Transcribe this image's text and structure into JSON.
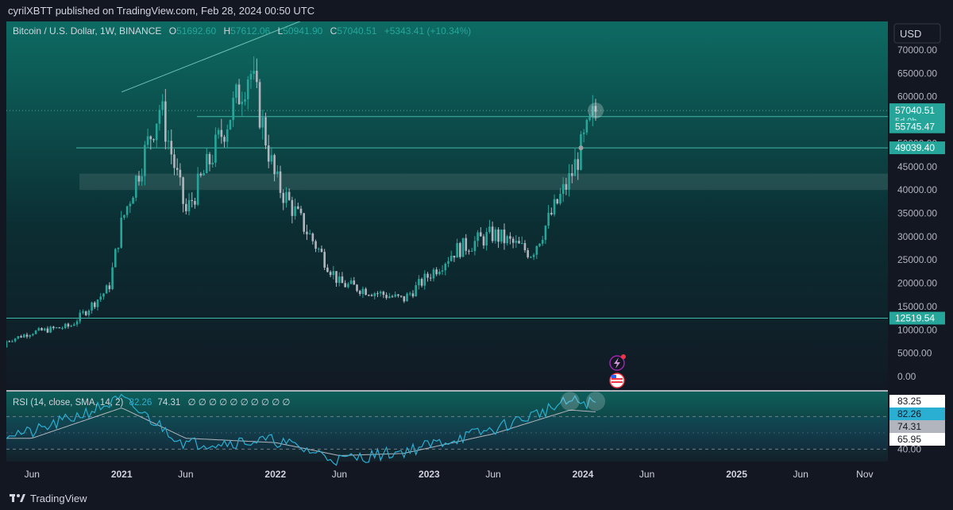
{
  "header": {
    "published_line": "cyrilXBTT published on TradingView.com, Feb 28, 2024 00:50 UTC"
  },
  "legend": {
    "symbol": "Bitcoin / U.S. Dollar, 1W, BINANCE",
    "o_label": "O",
    "o_value": "51692.60",
    "h_label": "H",
    "h_value": "57612.06",
    "l_label": "L",
    "l_value": "50941.90",
    "c_label": "C",
    "c_value": "57040.51",
    "change": "+5343.41 (+10.34%)"
  },
  "currency_button": "USD",
  "price_axis": {
    "ticks": [
      "70000.00",
      "65000.00",
      "60000.00",
      "55000.00",
      "50000.00",
      "45000.00",
      "40000.00",
      "35000.00",
      "30000.00",
      "25000.00",
      "20000.00",
      "15000.00",
      "10000.00",
      "5000.00",
      "0.00"
    ],
    "badges": [
      {
        "value": 57040.51,
        "label": "57040.51",
        "sub": "5d 0h",
        "color": "#26a69a"
      },
      {
        "value": 55745.47,
        "label": "55745.47",
        "color": "#26a69a"
      },
      {
        "value": 49039.4,
        "label": "49039.40",
        "color": "#26a69a"
      },
      {
        "value": 12519.54,
        "label": "12519.54",
        "color": "#26a69a"
      }
    ]
  },
  "rsi": {
    "legend": "RSI (14, close, SMA, 14, 2)",
    "rsi_value": "82.26",
    "sma_value": "74.31",
    "placeholders": "∅ ∅ ∅ ∅ ∅ ∅ ∅ ∅ ∅ ∅",
    "ticks": [
      "40.00"
    ],
    "badges": [
      {
        "value": 83.25,
        "label": "83.25"
      },
      {
        "value": 82.26,
        "label": "82.26"
      },
      {
        "value": 74.31,
        "label": "74.31"
      },
      {
        "value": 65.95,
        "label": "65.95"
      }
    ]
  },
  "time_axis": {
    "labels": [
      {
        "text": "Jun",
        "bold": false
      },
      {
        "text": "2021",
        "bold": true
      },
      {
        "text": "Jun",
        "bold": false
      },
      {
        "text": "2022",
        "bold": true
      },
      {
        "text": "Jun",
        "bold": false
      },
      {
        "text": "2023",
        "bold": true
      },
      {
        "text": "Jun",
        "bold": false
      },
      {
        "text": "2024",
        "bold": true
      },
      {
        "text": "Jun",
        "bold": false
      },
      {
        "text": "2025",
        "bold": true
      },
      {
        "text": "Jun",
        "bold": false
      },
      {
        "text": "Nov",
        "bold": false
      }
    ]
  },
  "colors": {
    "up": "#26a69a",
    "down": "#b2b5be",
    "rsi_line": "#2aaed1",
    "rsi_sma": "#b2b5be",
    "accent_teal": "#4db6ac"
  },
  "footer": {
    "brand": "TradingView"
  },
  "chart_data": {
    "type": "candlestick",
    "timeframe": "1W",
    "symbol": "Bitcoin / U.S. Dollar, 1W, BINANCE",
    "ylim": [
      0,
      72000
    ],
    "x": [
      "2020-06",
      "2020-09",
      "2020-12",
      "2021-01",
      "2021-04",
      "2021-06",
      "2021-08",
      "2021-11",
      "2022-01",
      "2022-06",
      "2022-11",
      "2023-03",
      "2023-06",
      "2023-09",
      "2023-12",
      "2024-02"
    ],
    "close": [
      9500,
      10800,
      19000,
      33000,
      58000,
      35000,
      47000,
      66000,
      42000,
      20000,
      16500,
      27000,
      30500,
      26500,
      42500,
      57040
    ],
    "horizontal_levels": [
      57040.51,
      55745.47,
      49039.4,
      12519.54
    ],
    "zone": [
      40000,
      43500
    ],
    "rsi": {
      "x": [
        "2020-06",
        "2021-01",
        "2021-06",
        "2022-01",
        "2022-06",
        "2022-11",
        "2023-06",
        "2023-12",
        "2024-02"
      ],
      "values": [
        55,
        86,
        45,
        48,
        30,
        38,
        58,
        84,
        82.26
      ],
      "sma": [
        50,
        78,
        50,
        46,
        34,
        36,
        54,
        76,
        74.31
      ]
    }
  }
}
